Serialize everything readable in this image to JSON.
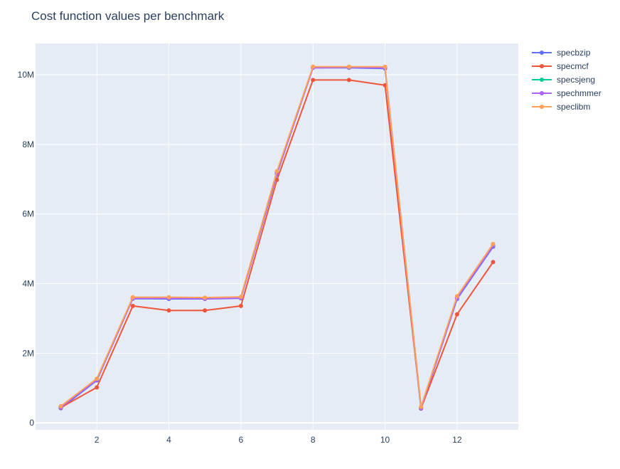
{
  "chart_data": {
    "type": "line",
    "title": "Cost function values per benchmark",
    "xlabel": "",
    "ylabel": "",
    "xlim": [
      0.3,
      13.7
    ],
    "ylim": [
      -200000,
      10900000
    ],
    "x_ticks": [
      2,
      4,
      6,
      8,
      10,
      12
    ],
    "x_tick_labels": [
      "2",
      "4",
      "6",
      "8",
      "10",
      "12"
    ],
    "y_ticks": [
      0,
      2000000,
      4000000,
      6000000,
      8000000,
      10000000
    ],
    "y_tick_labels": [
      "0",
      "2M",
      "4M",
      "6M",
      "8M",
      "10M"
    ],
    "grid": true,
    "legend_position": "top-right",
    "x": [
      1,
      2,
      3,
      4,
      5,
      6,
      7,
      8,
      9,
      10,
      11,
      12,
      13
    ],
    "series": [
      {
        "name": "specbzip",
        "color": "#636efa",
        "values": [
          420000,
          1220000,
          3570000,
          3560000,
          3560000,
          3580000,
          7150000,
          10200000,
          10200000,
          10180000,
          410000,
          3560000,
          5060000
        ]
      },
      {
        "name": "specmcf",
        "color": "#ef553b",
        "values": [
          440000,
          1020000,
          3360000,
          3230000,
          3230000,
          3360000,
          6980000,
          9850000,
          9850000,
          9700000,
          420000,
          3120000,
          4620000
        ]
      },
      {
        "name": "specsjeng",
        "color": "#00cc96",
        "values": [
          460000,
          1250000,
          3590000,
          3590000,
          3590000,
          3600000,
          7200000,
          10210000,
          10210000,
          10210000,
          440000,
          3610000,
          5110000
        ]
      },
      {
        "name": "spechmmer",
        "color": "#ab63fa",
        "values": [
          450000,
          1240000,
          3580000,
          3580000,
          3570000,
          3590000,
          7180000,
          10200000,
          10210000,
          10200000,
          430000,
          3590000,
          5090000
        ]
      },
      {
        "name": "speclibm",
        "color": "#ffa15a",
        "values": [
          480000,
          1270000,
          3610000,
          3610000,
          3600000,
          3620000,
          7230000,
          10230000,
          10230000,
          10230000,
          460000,
          3640000,
          5140000
        ]
      }
    ]
  }
}
